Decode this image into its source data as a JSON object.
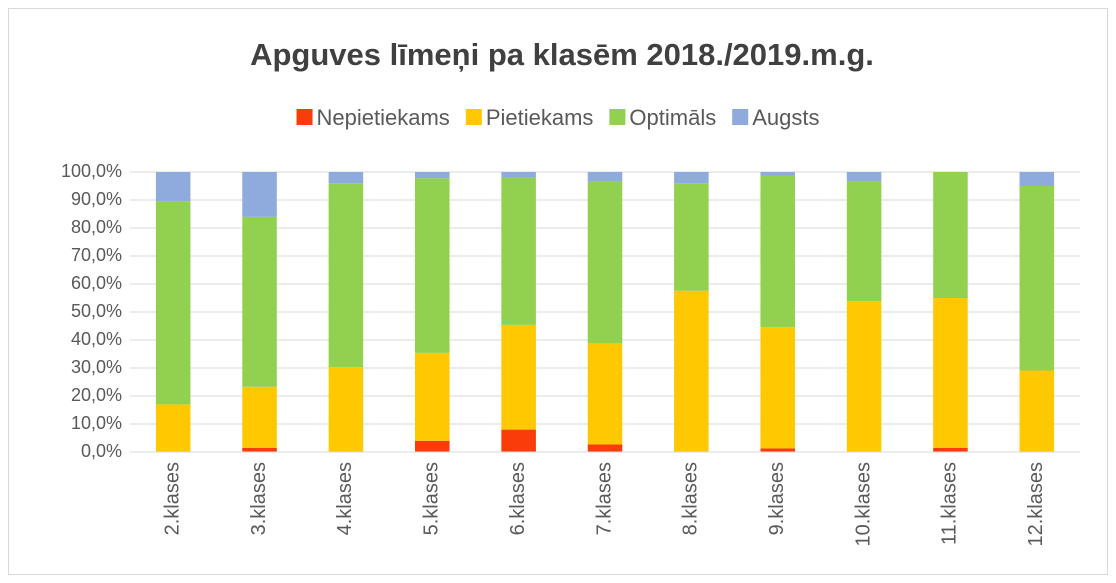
{
  "chart_data": {
    "type": "stacked_bar",
    "title": "Apguves līmeņi pa klasēm 2018./2019.m.g.",
    "categories": [
      "2.klases",
      "3.klases",
      "4.klases",
      "5.klases",
      "6.klases",
      "7.klases",
      "8.klases",
      "9.klases",
      "10.klases",
      "11.klases",
      "12.klases"
    ],
    "series": [
      {
        "name": "Nepietiekams",
        "color": "#fa3c0a",
        "values": [
          0,
          1.5,
          0,
          4,
          8,
          2.7,
          0,
          1.3,
          0,
          1.5,
          0
        ]
      },
      {
        "name": "Pietiekams",
        "color": "#ffc800",
        "values": [
          17,
          21.8,
          30.3,
          31.4,
          37.4,
          36.1,
          57.6,
          43.3,
          53.9,
          53.5,
          29.1
        ]
      },
      {
        "name": "Optimāls",
        "color": "#92d050",
        "values": [
          72.6,
          60.7,
          65.7,
          62.4,
          52.6,
          57.7,
          38.4,
          54,
          42.6,
          45,
          65.9
        ]
      },
      {
        "name": "Augsts",
        "color": "#8faadc",
        "values": [
          10.4,
          16,
          4,
          2.2,
          2,
          3.5,
          4,
          1.4,
          3.5,
          0,
          5
        ]
      }
    ],
    "ylim": [
      0,
      100
    ],
    "yticks": [
      {
        "value": 0,
        "label": "0,0%"
      },
      {
        "value": 10,
        "label": "10,0%"
      },
      {
        "value": 20,
        "label": "20,0%"
      },
      {
        "value": 30,
        "label": "30,0%"
      },
      {
        "value": 40,
        "label": "40,0%"
      },
      {
        "value": 50,
        "label": "50,0%"
      },
      {
        "value": 60,
        "label": "60,0%"
      },
      {
        "value": 70,
        "label": "70,0%"
      },
      {
        "value": 80,
        "label": "80,0%"
      },
      {
        "value": 90,
        "label": "90,0%"
      },
      {
        "value": 100,
        "label": "100,0%"
      }
    ],
    "grid": true,
    "legend": "top"
  }
}
